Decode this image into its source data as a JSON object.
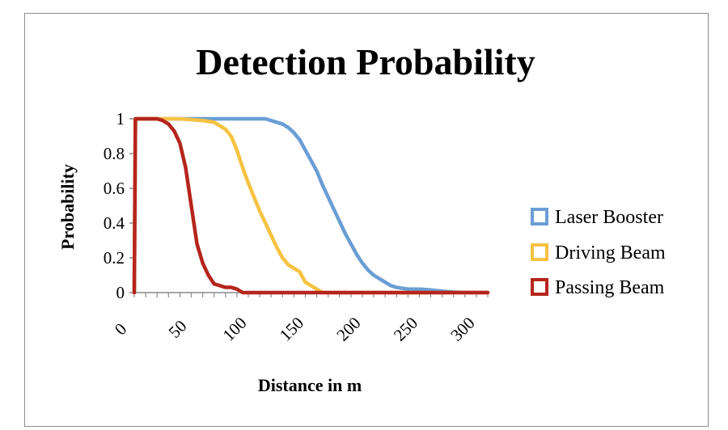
{
  "chart_data": {
    "type": "line",
    "title": "Detection Probability",
    "xlabel": "Distance in m",
    "ylabel": "Probability",
    "xlim": [
      0,
      310
    ],
    "ylim": [
      0,
      1
    ],
    "x_ticks": [
      "0",
      "50",
      "100",
      "150",
      "200",
      "250",
      "300"
    ],
    "y_ticks": [
      "0",
      "0.2",
      "0.4",
      "0.6",
      "0.8",
      "1"
    ],
    "legend_position": "right",
    "grid": false,
    "series": [
      {
        "name": "Laser Booster",
        "color": "#6a9ed4",
        "points": [
          [
            0,
            0
          ],
          [
            1,
            1
          ],
          [
            5,
            1
          ],
          [
            50,
            1
          ],
          [
            100,
            1
          ],
          [
            115,
            1
          ],
          [
            120,
            0.99
          ],
          [
            125,
            0.98
          ],
          [
            130,
            0.97
          ],
          [
            135,
            0.95
          ],
          [
            140,
            0.92
          ],
          [
            145,
            0.88
          ],
          [
            150,
            0.82
          ],
          [
            155,
            0.76
          ],
          [
            160,
            0.7
          ],
          [
            165,
            0.62
          ],
          [
            170,
            0.55
          ],
          [
            175,
            0.48
          ],
          [
            180,
            0.41
          ],
          [
            185,
            0.34
          ],
          [
            190,
            0.28
          ],
          [
            195,
            0.22
          ],
          [
            200,
            0.17
          ],
          [
            205,
            0.13
          ],
          [
            210,
            0.1
          ],
          [
            215,
            0.08
          ],
          [
            220,
            0.06
          ],
          [
            225,
            0.04
          ],
          [
            230,
            0.03
          ],
          [
            240,
            0.02
          ],
          [
            250,
            0.02
          ],
          [
            260,
            0.015
          ],
          [
            270,
            0.008
          ],
          [
            280,
            0.003
          ],
          [
            290,
            0
          ],
          [
            310,
            0
          ]
        ]
      },
      {
        "name": "Driving Beam",
        "color": "#f5c242",
        "points": [
          [
            0,
            0
          ],
          [
            1,
            1
          ],
          [
            5,
            1
          ],
          [
            40,
            1
          ],
          [
            60,
            0.99
          ],
          [
            70,
            0.98
          ],
          [
            75,
            0.96
          ],
          [
            80,
            0.94
          ],
          [
            85,
            0.9
          ],
          [
            90,
            0.82
          ],
          [
            95,
            0.72
          ],
          [
            100,
            0.63
          ],
          [
            105,
            0.55
          ],
          [
            110,
            0.47
          ],
          [
            115,
            0.4
          ],
          [
            120,
            0.33
          ],
          [
            125,
            0.26
          ],
          [
            130,
            0.2
          ],
          [
            135,
            0.16
          ],
          [
            140,
            0.14
          ],
          [
            145,
            0.12
          ],
          [
            150,
            0.06
          ],
          [
            155,
            0.04
          ],
          [
            160,
            0.02
          ],
          [
            165,
            0
          ],
          [
            310,
            0
          ]
        ]
      },
      {
        "name": "Passing Beam",
        "color": "#b5251c",
        "points": [
          [
            0,
            0
          ],
          [
            1,
            1
          ],
          [
            5,
            1
          ],
          [
            20,
            1
          ],
          [
            25,
            0.99
          ],
          [
            30,
            0.97
          ],
          [
            35,
            0.93
          ],
          [
            40,
            0.86
          ],
          [
            45,
            0.72
          ],
          [
            50,
            0.5
          ],
          [
            55,
            0.28
          ],
          [
            60,
            0.17
          ],
          [
            65,
            0.1
          ],
          [
            70,
            0.05
          ],
          [
            75,
            0.04
          ],
          [
            80,
            0.03
          ],
          [
            85,
            0.03
          ],
          [
            90,
            0.02
          ],
          [
            95,
            0
          ],
          [
            310,
            0
          ]
        ]
      }
    ]
  }
}
